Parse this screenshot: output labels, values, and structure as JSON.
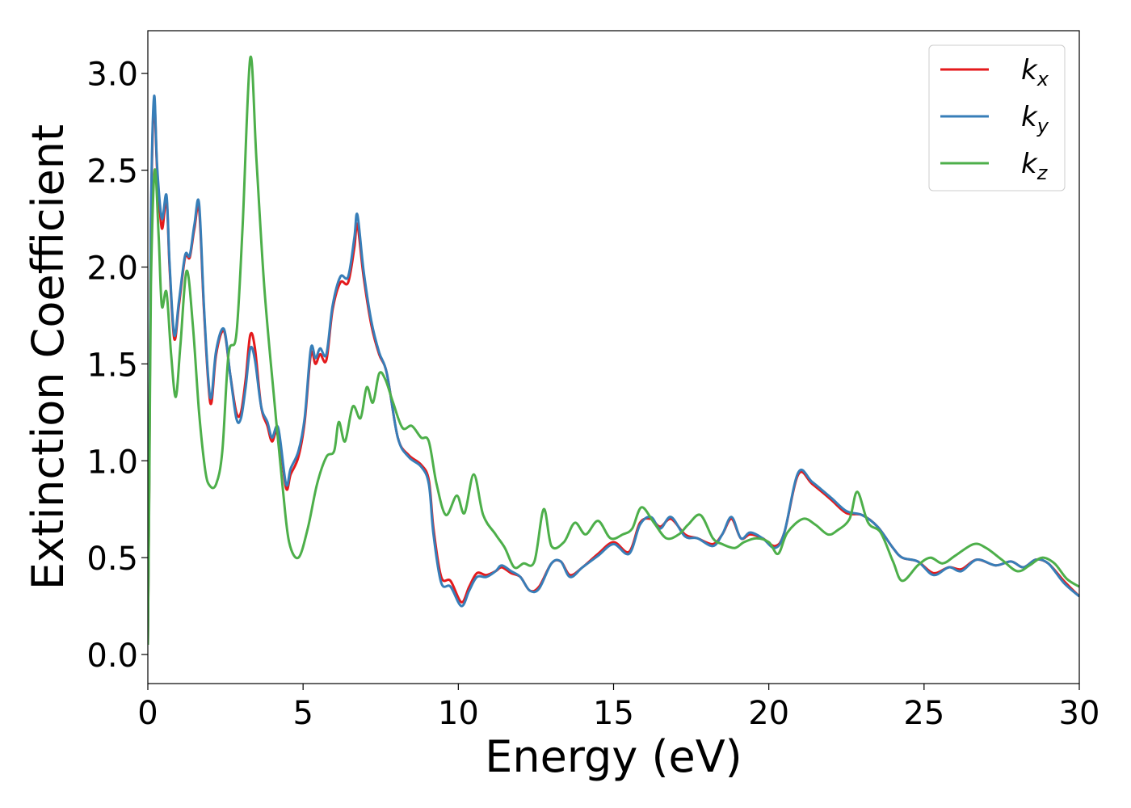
{
  "chart_data": {
    "type": "line",
    "xlabel": "Energy (eV)",
    "ylabel": "Extinction Coefficient",
    "xlim": [
      0,
      30
    ],
    "ylim": [
      -0.15,
      3.22
    ],
    "xticks": [
      0,
      5,
      10,
      15,
      20,
      25,
      30
    ],
    "xtick_labels": [
      "0",
      "5",
      "10",
      "15",
      "20",
      "25",
      "30"
    ],
    "yticks": [
      0.0,
      0.5,
      1.0,
      1.5,
      2.0,
      2.5,
      3.0
    ],
    "ytick_labels": [
      "0.0",
      "0.5",
      "1.0",
      "1.5",
      "2.0",
      "2.5",
      "3.0"
    ],
    "grid": false,
    "legend_position": "top-right",
    "series": [
      {
        "name": "k_x",
        "label_main": "k",
        "label_sub": "x",
        "color": "#e41a1c",
        "points": [
          [
            0,
            0.05
          ],
          [
            0.05,
            1.0
          ],
          [
            0.1,
            2.2
          ],
          [
            0.2,
            2.85
          ],
          [
            0.3,
            2.5
          ],
          [
            0.45,
            2.2
          ],
          [
            0.6,
            2.35
          ],
          [
            0.7,
            2.0
          ],
          [
            0.85,
            1.63
          ],
          [
            1.0,
            1.8
          ],
          [
            1.2,
            2.05
          ],
          [
            1.35,
            2.05
          ],
          [
            1.5,
            2.2
          ],
          [
            1.65,
            2.3
          ],
          [
            1.8,
            1.8
          ],
          [
            1.95,
            1.4
          ],
          [
            2.05,
            1.3
          ],
          [
            2.2,
            1.55
          ],
          [
            2.45,
            1.67
          ],
          [
            2.65,
            1.45
          ],
          [
            2.85,
            1.25
          ],
          [
            3.0,
            1.25
          ],
          [
            3.15,
            1.42
          ],
          [
            3.3,
            1.65
          ],
          [
            3.45,
            1.58
          ],
          [
            3.65,
            1.28
          ],
          [
            3.85,
            1.18
          ],
          [
            4.0,
            1.1
          ],
          [
            4.2,
            1.15
          ],
          [
            4.45,
            0.86
          ],
          [
            4.6,
            0.93
          ],
          [
            4.85,
            1.02
          ],
          [
            5.05,
            1.2
          ],
          [
            5.25,
            1.55
          ],
          [
            5.4,
            1.5
          ],
          [
            5.55,
            1.55
          ],
          [
            5.75,
            1.52
          ],
          [
            5.95,
            1.78
          ],
          [
            6.2,
            1.92
          ],
          [
            6.45,
            1.92
          ],
          [
            6.65,
            2.1
          ],
          [
            6.75,
            2.22
          ],
          [
            6.95,
            1.95
          ],
          [
            7.2,
            1.7
          ],
          [
            7.45,
            1.55
          ],
          [
            7.7,
            1.45
          ],
          [
            8.05,
            1.12
          ],
          [
            8.4,
            1.03
          ],
          [
            8.8,
            0.98
          ],
          [
            9.05,
            0.9
          ],
          [
            9.2,
            0.65
          ],
          [
            9.45,
            0.4
          ],
          [
            9.75,
            0.38
          ],
          [
            10.1,
            0.27
          ],
          [
            10.35,
            0.35
          ],
          [
            10.6,
            0.42
          ],
          [
            10.9,
            0.41
          ],
          [
            11.2,
            0.43
          ],
          [
            11.4,
            0.45
          ],
          [
            11.7,
            0.42
          ],
          [
            12.0,
            0.4
          ],
          [
            12.3,
            0.33
          ],
          [
            12.6,
            0.35
          ],
          [
            13.0,
            0.47
          ],
          [
            13.3,
            0.48
          ],
          [
            13.6,
            0.41
          ],
          [
            14.0,
            0.45
          ],
          [
            14.5,
            0.52
          ],
          [
            15.0,
            0.58
          ],
          [
            15.5,
            0.53
          ],
          [
            15.85,
            0.68
          ],
          [
            16.2,
            0.7
          ],
          [
            16.5,
            0.66
          ],
          [
            16.85,
            0.7
          ],
          [
            17.3,
            0.62
          ],
          [
            17.7,
            0.6
          ],
          [
            18.2,
            0.57
          ],
          [
            18.5,
            0.62
          ],
          [
            18.8,
            0.7
          ],
          [
            19.1,
            0.6
          ],
          [
            19.4,
            0.62
          ],
          [
            19.8,
            0.6
          ],
          [
            20.2,
            0.56
          ],
          [
            20.5,
            0.63
          ],
          [
            20.95,
            0.93
          ],
          [
            21.4,
            0.88
          ],
          [
            22.0,
            0.8
          ],
          [
            22.5,
            0.73
          ],
          [
            23.0,
            0.72
          ],
          [
            23.5,
            0.66
          ],
          [
            24.0,
            0.55
          ],
          [
            24.3,
            0.5
          ],
          [
            24.8,
            0.48
          ],
          [
            25.3,
            0.42
          ],
          [
            25.8,
            0.45
          ],
          [
            26.2,
            0.44
          ],
          [
            26.7,
            0.49
          ],
          [
            27.3,
            0.46
          ],
          [
            27.8,
            0.48
          ],
          [
            28.2,
            0.45
          ],
          [
            28.6,
            0.49
          ],
          [
            29.0,
            0.47
          ],
          [
            29.5,
            0.38
          ],
          [
            30.0,
            0.3
          ]
        ]
      },
      {
        "name": "k_y",
        "label_main": "k",
        "label_sub": "y",
        "color": "#377eb8",
        "points": [
          [
            0,
            0.05
          ],
          [
            0.05,
            1.05
          ],
          [
            0.1,
            2.25
          ],
          [
            0.2,
            2.88
          ],
          [
            0.3,
            2.52
          ],
          [
            0.45,
            2.25
          ],
          [
            0.6,
            2.37
          ],
          [
            0.7,
            2.02
          ],
          [
            0.85,
            1.65
          ],
          [
            1.0,
            1.82
          ],
          [
            1.2,
            2.06
          ],
          [
            1.35,
            2.06
          ],
          [
            1.5,
            2.22
          ],
          [
            1.65,
            2.33
          ],
          [
            1.8,
            1.82
          ],
          [
            1.95,
            1.42
          ],
          [
            2.05,
            1.33
          ],
          [
            2.2,
            1.57
          ],
          [
            2.45,
            1.68
          ],
          [
            2.65,
            1.45
          ],
          [
            2.85,
            1.22
          ],
          [
            3.0,
            1.22
          ],
          [
            3.15,
            1.38
          ],
          [
            3.3,
            1.58
          ],
          [
            3.45,
            1.52
          ],
          [
            3.65,
            1.28
          ],
          [
            3.85,
            1.2
          ],
          [
            4.0,
            1.12
          ],
          [
            4.2,
            1.17
          ],
          [
            4.45,
            0.88
          ],
          [
            4.6,
            0.96
          ],
          [
            4.85,
            1.05
          ],
          [
            5.05,
            1.22
          ],
          [
            5.25,
            1.58
          ],
          [
            5.4,
            1.53
          ],
          [
            5.55,
            1.58
          ],
          [
            5.75,
            1.55
          ],
          [
            5.95,
            1.8
          ],
          [
            6.2,
            1.95
          ],
          [
            6.45,
            1.95
          ],
          [
            6.65,
            2.15
          ],
          [
            6.75,
            2.27
          ],
          [
            6.95,
            1.98
          ],
          [
            7.2,
            1.72
          ],
          [
            7.45,
            1.56
          ],
          [
            7.7,
            1.45
          ],
          [
            8.05,
            1.12
          ],
          [
            8.4,
            1.02
          ],
          [
            8.8,
            0.97
          ],
          [
            9.05,
            0.88
          ],
          [
            9.2,
            0.62
          ],
          [
            9.45,
            0.37
          ],
          [
            9.75,
            0.35
          ],
          [
            10.1,
            0.25
          ],
          [
            10.35,
            0.33
          ],
          [
            10.6,
            0.4
          ],
          [
            10.9,
            0.4
          ],
          [
            11.2,
            0.43
          ],
          [
            11.4,
            0.46
          ],
          [
            11.7,
            0.43
          ],
          [
            12.0,
            0.4
          ],
          [
            12.3,
            0.33
          ],
          [
            12.6,
            0.34
          ],
          [
            13.0,
            0.47
          ],
          [
            13.3,
            0.48
          ],
          [
            13.6,
            0.4
          ],
          [
            14.0,
            0.45
          ],
          [
            14.5,
            0.51
          ],
          [
            15.0,
            0.57
          ],
          [
            15.5,
            0.52
          ],
          [
            15.85,
            0.67
          ],
          [
            16.2,
            0.71
          ],
          [
            16.5,
            0.65
          ],
          [
            16.85,
            0.71
          ],
          [
            17.3,
            0.61
          ],
          [
            17.7,
            0.6
          ],
          [
            18.2,
            0.56
          ],
          [
            18.5,
            0.62
          ],
          [
            18.8,
            0.71
          ],
          [
            19.1,
            0.6
          ],
          [
            19.4,
            0.63
          ],
          [
            19.8,
            0.6
          ],
          [
            20.2,
            0.55
          ],
          [
            20.5,
            0.63
          ],
          [
            20.95,
            0.94
          ],
          [
            21.4,
            0.89
          ],
          [
            22.0,
            0.81
          ],
          [
            22.5,
            0.74
          ],
          [
            23.0,
            0.72
          ],
          [
            23.5,
            0.66
          ],
          [
            24.0,
            0.55
          ],
          [
            24.3,
            0.5
          ],
          [
            24.8,
            0.48
          ],
          [
            25.3,
            0.41
          ],
          [
            25.8,
            0.45
          ],
          [
            26.2,
            0.43
          ],
          [
            26.7,
            0.49
          ],
          [
            27.3,
            0.46
          ],
          [
            27.8,
            0.48
          ],
          [
            28.2,
            0.45
          ],
          [
            28.6,
            0.49
          ],
          [
            29.0,
            0.47
          ],
          [
            29.5,
            0.37
          ],
          [
            30.0,
            0.3
          ]
        ]
      },
      {
        "name": "k_z",
        "label_main": "k",
        "label_sub": "z",
        "color": "#4daf4a",
        "points": [
          [
            0,
            0.05
          ],
          [
            0.05,
            0.9
          ],
          [
            0.1,
            1.9
          ],
          [
            0.22,
            2.5
          ],
          [
            0.35,
            2.15
          ],
          [
            0.45,
            1.8
          ],
          [
            0.6,
            1.87
          ],
          [
            0.75,
            1.55
          ],
          [
            0.9,
            1.33
          ],
          [
            1.05,
            1.6
          ],
          [
            1.25,
            1.98
          ],
          [
            1.45,
            1.7
          ],
          [
            1.65,
            1.25
          ],
          [
            1.85,
            0.95
          ],
          [
            2.0,
            0.87
          ],
          [
            2.2,
            0.88
          ],
          [
            2.4,
            1.05
          ],
          [
            2.6,
            1.55
          ],
          [
            2.85,
            1.65
          ],
          [
            3.05,
            2.2
          ],
          [
            3.3,
            3.08
          ],
          [
            3.5,
            2.55
          ],
          [
            3.75,
            1.9
          ],
          [
            4.05,
            1.35
          ],
          [
            4.35,
            0.85
          ],
          [
            4.55,
            0.58
          ],
          [
            4.85,
            0.5
          ],
          [
            5.15,
            0.65
          ],
          [
            5.45,
            0.88
          ],
          [
            5.75,
            1.02
          ],
          [
            6.0,
            1.05
          ],
          [
            6.15,
            1.2
          ],
          [
            6.35,
            1.1
          ],
          [
            6.6,
            1.28
          ],
          [
            6.85,
            1.22
          ],
          [
            7.05,
            1.38
          ],
          [
            7.25,
            1.3
          ],
          [
            7.45,
            1.45
          ],
          [
            7.65,
            1.42
          ],
          [
            7.9,
            1.3
          ],
          [
            8.2,
            1.17
          ],
          [
            8.5,
            1.18
          ],
          [
            8.8,
            1.12
          ],
          [
            9.05,
            1.1
          ],
          [
            9.3,
            0.88
          ],
          [
            9.6,
            0.72
          ],
          [
            9.95,
            0.82
          ],
          [
            10.2,
            0.73
          ],
          [
            10.5,
            0.93
          ],
          [
            10.8,
            0.72
          ],
          [
            11.2,
            0.62
          ],
          [
            11.5,
            0.55
          ],
          [
            11.8,
            0.45
          ],
          [
            12.1,
            0.47
          ],
          [
            12.45,
            0.48
          ],
          [
            12.75,
            0.75
          ],
          [
            13.0,
            0.56
          ],
          [
            13.4,
            0.58
          ],
          [
            13.75,
            0.68
          ],
          [
            14.1,
            0.62
          ],
          [
            14.5,
            0.69
          ],
          [
            14.9,
            0.6
          ],
          [
            15.3,
            0.62
          ],
          [
            15.6,
            0.65
          ],
          [
            15.9,
            0.76
          ],
          [
            16.3,
            0.68
          ],
          [
            16.7,
            0.6
          ],
          [
            17.1,
            0.62
          ],
          [
            17.4,
            0.67
          ],
          [
            17.8,
            0.72
          ],
          [
            18.2,
            0.6
          ],
          [
            18.5,
            0.57
          ],
          [
            18.9,
            0.55
          ],
          [
            19.2,
            0.58
          ],
          [
            19.6,
            0.6
          ],
          [
            20.0,
            0.58
          ],
          [
            20.3,
            0.52
          ],
          [
            20.6,
            0.63
          ],
          [
            21.1,
            0.7
          ],
          [
            21.5,
            0.67
          ],
          [
            21.9,
            0.62
          ],
          [
            22.2,
            0.64
          ],
          [
            22.6,
            0.7
          ],
          [
            22.85,
            0.84
          ],
          [
            23.2,
            0.68
          ],
          [
            23.6,
            0.63
          ],
          [
            24.0,
            0.48
          ],
          [
            24.3,
            0.38
          ],
          [
            24.8,
            0.46
          ],
          [
            25.2,
            0.5
          ],
          [
            25.6,
            0.47
          ],
          [
            26.0,
            0.51
          ],
          [
            26.6,
            0.57
          ],
          [
            27.0,
            0.55
          ],
          [
            27.5,
            0.49
          ],
          [
            28.0,
            0.43
          ],
          [
            28.4,
            0.46
          ],
          [
            28.8,
            0.5
          ],
          [
            29.2,
            0.47
          ],
          [
            29.6,
            0.39
          ],
          [
            30.0,
            0.35
          ]
        ]
      }
    ]
  }
}
